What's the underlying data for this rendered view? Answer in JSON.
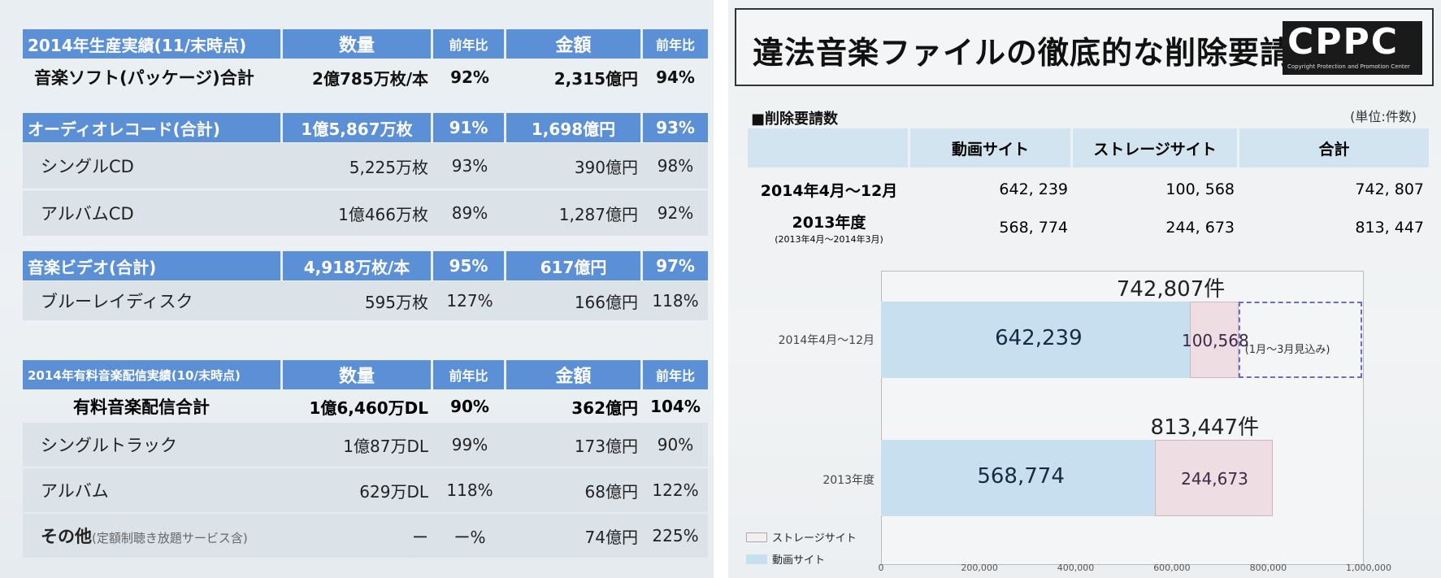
{
  "left": {
    "production": {
      "header": {
        "title": "2014年生産実績(11/末時点)",
        "qty": "数量",
        "yoy1": "前年比",
        "amount": "金額",
        "yoy2": "前年比"
      },
      "total": {
        "label": "音楽ソフト(パッケージ)合計",
        "qty": "2億785万枚/本",
        "yoy1": "92%",
        "amount": "2,315億円",
        "yoy2": "94%"
      }
    },
    "audio": {
      "header": {
        "label": "オーディオレコード(合計)",
        "qty": "1億5,867万枚",
        "yoy1": "91%",
        "amount": "1,698億円",
        "yoy2": "93%"
      },
      "rows": [
        {
          "label": "シングルCD",
          "qty": "5,225万枚",
          "yoy1": "93%",
          "amount": "390億円",
          "yoy2": "98%"
        },
        {
          "label": "アルバムCD",
          "qty": "1億466万枚",
          "yoy1": "89%",
          "amount": "1,287億円",
          "yoy2": "92%"
        }
      ]
    },
    "video": {
      "header": {
        "label": "音楽ビデオ(合計)",
        "qty": "4,918万枚/本",
        "yoy1": "95%",
        "amount": "617億円",
        "yoy2": "97%"
      },
      "rows": [
        {
          "label": "ブルーレイディスク",
          "qty": "595万枚",
          "yoy1": "127%",
          "amount": "166億円",
          "yoy2": "118%"
        }
      ]
    },
    "digital": {
      "header": {
        "title": "2014年有料音楽配信実績(10/末時点)",
        "qty": "数量",
        "yoy1": "前年比",
        "amount": "金額",
        "yoy2": "前年比"
      },
      "total": {
        "label": "有料音楽配信合計",
        "qty": "1億6,460万DL",
        "yoy1": "90%",
        "amount": "362億円",
        "yoy2": "104%"
      },
      "rows": [
        {
          "label": "シングルトラック",
          "qty": "1億87万DL",
          "yoy1": "99%",
          "amount": "173億円",
          "yoy2": "90%"
        },
        {
          "label": "アルバム",
          "qty": "629万DL",
          "yoy1": "118%",
          "amount": "68億円",
          "yoy2": "122%"
        },
        {
          "label": "その他",
          "note": "(定額制聴き放題サービス含)",
          "qty": "ー",
          "yoy1": "ー%",
          "amount": "74億円",
          "yoy2": "225%"
        }
      ]
    }
  },
  "right": {
    "title": "違法音楽ファイルの徹底的な削除要請",
    "logo": {
      "text": "CPPC",
      "sub": "Copyright Protection and Promotion Center"
    },
    "section": "■削除要請数",
    "unit": "(単位:件数)",
    "table": {
      "headers": [
        "",
        "動画サイト",
        "ストレージサイト",
        "合計"
      ],
      "rows": [
        {
          "period": "2014年4月〜12月",
          "sub": "",
          "video": "642, 239",
          "storage": "100, 568",
          "total": "742, 807"
        },
        {
          "period": "2013年度",
          "sub": "(2013年4月〜2014年3月)",
          "video": "568, 774",
          "storage": "244, 673",
          "total": "813, 447"
        }
      ]
    },
    "chart_data": {
      "type": "bar",
      "orientation": "horizontal",
      "stacked": true,
      "categories": [
        "2014年4月〜12月",
        "2013年度"
      ],
      "series": [
        {
          "name": "動画サイト",
          "values": [
            642239,
            568774
          ],
          "labels": [
            "642,239",
            "568,774"
          ],
          "color": "#c8dfef"
        },
        {
          "name": "ストレージサイト",
          "values": [
            100568,
            244673
          ],
          "labels": [
            "100,568",
            "244,673"
          ],
          "color": "#eedde3"
        }
      ],
      "totals": [
        "742,807件",
        "813,447件"
      ],
      "projection": {
        "category": "2014年4月〜12月",
        "label": "(1月〜3月見込み)",
        "from": 742807,
        "to": 1000000
      },
      "xlim": [
        0,
        1000000
      ],
      "xticks": [
        "0",
        "200,000",
        "400,000",
        "600,000",
        "800,000",
        "1,000,000"
      ],
      "legend": {
        "placement": "bottom-left",
        "entries": [
          "ストレージサイト",
          "動画サイト"
        ]
      },
      "grid": false
    }
  }
}
